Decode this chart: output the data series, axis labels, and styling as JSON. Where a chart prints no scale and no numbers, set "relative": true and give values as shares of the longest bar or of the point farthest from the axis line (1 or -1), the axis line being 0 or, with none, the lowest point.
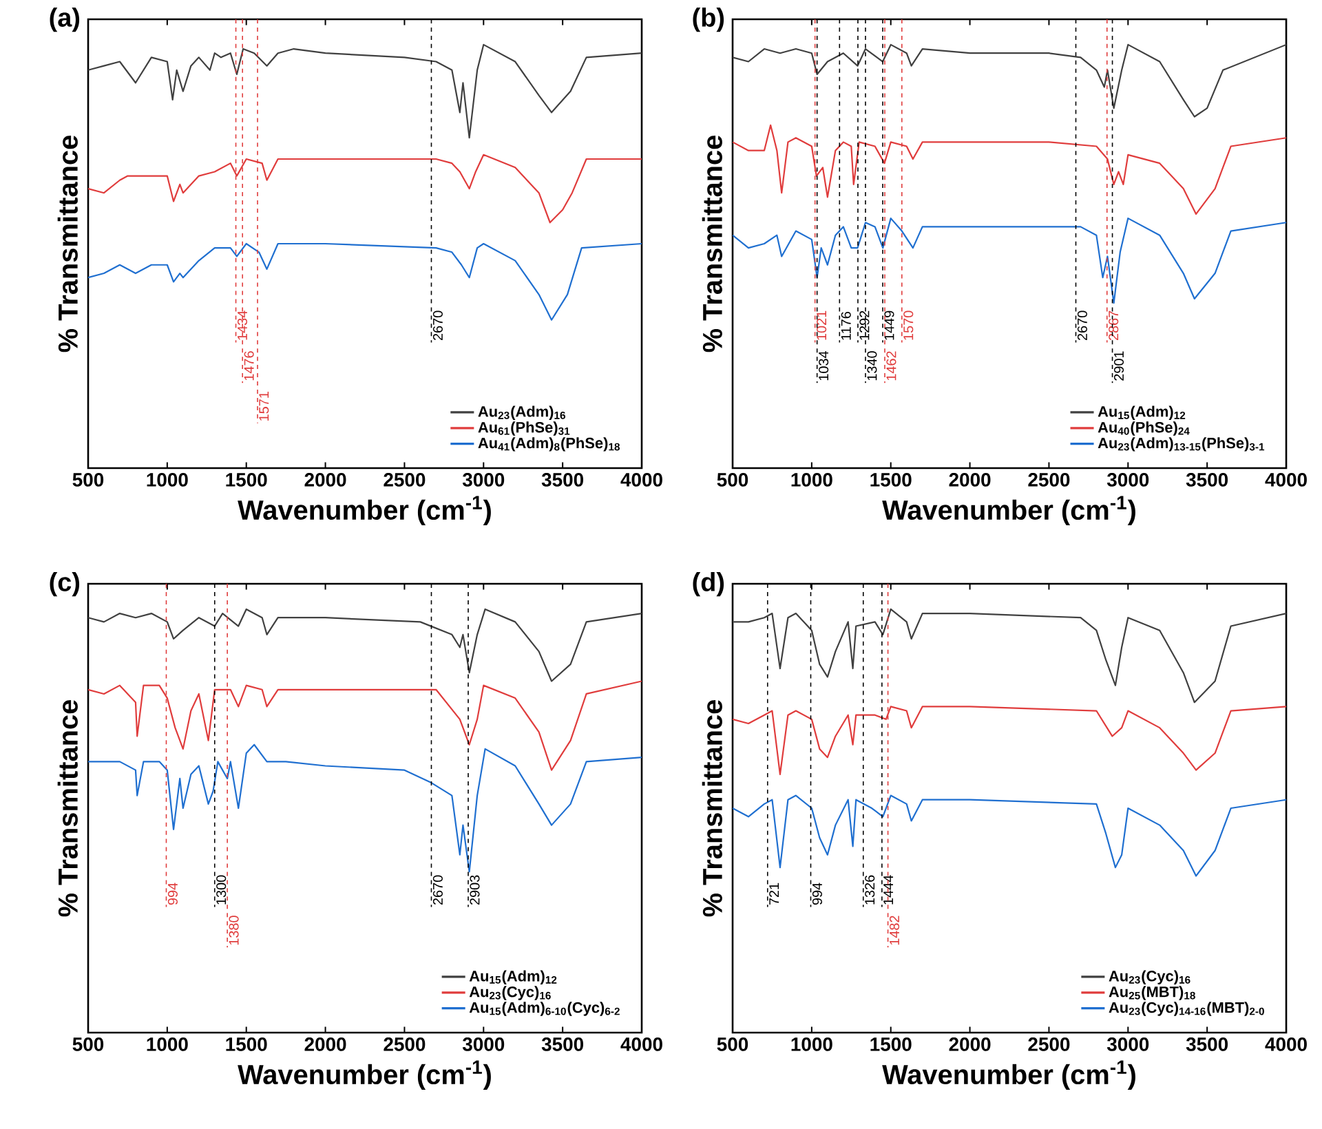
{
  "chart_data": [
    {
      "type": "line",
      "title": "(a)",
      "xlabel": "Wavenumber (cm$^{-1}$)",
      "ylabel": "% Transmittance",
      "relative": true,
      "xlim": [
        500,
        4000
      ],
      "xticks": [
        500,
        1000,
        1500,
        2000,
        2500,
        3000,
        3500,
        4000
      ],
      "legend": "bottom right",
      "series": [
        {
          "name": "Au$_{23}$(Adm)$_{16}$",
          "color": "#404040",
          "x": [
            500,
            600,
            700,
            800,
            900,
            1000,
            1034,
            1060,
            1100,
            1150,
            1200,
            1270,
            1300,
            1340,
            1400,
            1440,
            1480,
            1550,
            1630,
            1700,
            1800,
            2000,
            2500,
            2700,
            2800,
            2850,
            2870,
            2910,
            2960,
            3000,
            3200,
            3350,
            3430,
            3550,
            3650,
            4000
          ],
          "values": [
            0.94,
            0.95,
            0.96,
            0.91,
            0.97,
            0.96,
            0.87,
            0.94,
            0.89,
            0.95,
            0.97,
            0.94,
            0.98,
            0.97,
            0.98,
            0.93,
            0.99,
            0.98,
            0.95,
            0.98,
            0.99,
            0.98,
            0.97,
            0.96,
            0.94,
            0.84,
            0.91,
            0.78,
            0.94,
            1.0,
            0.96,
            0.88,
            0.84,
            0.89,
            0.97,
            0.98
          ]
        },
        {
          "name": "Au$_{61}$(PhSe)$_{31}$",
          "color": "#e03c3c",
          "x": [
            500,
            600,
            700,
            750,
            850,
            1000,
            1040,
            1080,
            1100,
            1200,
            1300,
            1400,
            1440,
            1500,
            1600,
            1630,
            1700,
            2000,
            2700,
            2800,
            2850,
            2880,
            2910,
            2950,
            3000,
            3200,
            3350,
            3420,
            3500,
            3560,
            3650,
            4000
          ],
          "values": [
            0.66,
            0.65,
            0.68,
            0.69,
            0.69,
            0.69,
            0.63,
            0.67,
            0.65,
            0.69,
            0.7,
            0.72,
            0.69,
            0.73,
            0.72,
            0.68,
            0.73,
            0.73,
            0.73,
            0.72,
            0.7,
            0.68,
            0.66,
            0.7,
            0.74,
            0.71,
            0.65,
            0.58,
            0.61,
            0.65,
            0.73,
            0.73
          ]
        },
        {
          "name": "Au$_{41}$(Adm)$_{8}$(PhSe)$_{18}$",
          "color": "#1f6fd0",
          "x": [
            500,
            600,
            700,
            800,
            900,
            1000,
            1040,
            1080,
            1100,
            1200,
            1300,
            1400,
            1440,
            1500,
            1580,
            1630,
            1700,
            2000,
            2700,
            2800,
            2860,
            2910,
            2960,
            3000,
            3200,
            3350,
            3430,
            3530,
            3620,
            4000
          ],
          "values": [
            0.45,
            0.46,
            0.48,
            0.46,
            0.48,
            0.48,
            0.44,
            0.46,
            0.45,
            0.49,
            0.52,
            0.52,
            0.5,
            0.53,
            0.51,
            0.47,
            0.53,
            0.53,
            0.52,
            0.51,
            0.48,
            0.45,
            0.52,
            0.53,
            0.49,
            0.41,
            0.35,
            0.41,
            0.52,
            0.53
          ]
        }
      ],
      "ref_lines": [
        {
          "axis": "x",
          "value": 1434,
          "label": "1434",
          "color": "#e03c3c",
          "line_style": "dashed"
        },
        {
          "axis": "x",
          "value": 1476,
          "label": "1476",
          "color": "#e03c3c",
          "line_style": "dashed"
        },
        {
          "axis": "x",
          "value": 1571,
          "label": "1571",
          "color": "#e03c3c",
          "line_style": "dashed"
        },
        {
          "axis": "x",
          "value": 2670,
          "label": "2670",
          "color": "#000000",
          "line_style": "dashed"
        }
      ]
    },
    {
      "type": "line",
      "title": "(b)",
      "xlabel": "Wavenumber (cm$^{-1}$)",
      "ylabel": "% Transmittance",
      "relative": true,
      "xlim": [
        500,
        4000
      ],
      "xticks": [
        500,
        1000,
        1500,
        2000,
        2500,
        3000,
        3500,
        4000
      ],
      "legend": "bottom right",
      "series": [
        {
          "name": "Au$_{15}$(Adm)$_{12}$",
          "color": "#404040",
          "x": [
            500,
            600,
            700,
            800,
            900,
            1000,
            1034,
            1100,
            1200,
            1290,
            1340,
            1449,
            1500,
            1600,
            1630,
            1700,
            2000,
            2500,
            2700,
            2800,
            2850,
            2870,
            2910,
            2960,
            3000,
            3200,
            3350,
            3420,
            3500,
            3600,
            4000
          ],
          "values": [
            0.97,
            0.96,
            0.99,
            0.98,
            0.99,
            0.98,
            0.93,
            0.96,
            0.98,
            0.95,
            0.99,
            0.96,
            1.0,
            0.98,
            0.95,
            0.99,
            0.98,
            0.98,
            0.97,
            0.94,
            0.9,
            0.94,
            0.85,
            0.94,
            1.0,
            0.96,
            0.87,
            0.83,
            0.85,
            0.94,
            1.0
          ]
        },
        {
          "name": "Au$_{40}$(PhSe)$_{24}$",
          "color": "#e03c3c",
          "x": [
            500,
            600,
            700,
            740,
            780,
            810,
            850,
            900,
            1000,
            1030,
            1070,
            1100,
            1150,
            1200,
            1250,
            1265,
            1300,
            1400,
            1460,
            1500,
            1600,
            1640,
            1700,
            2500,
            2800,
            2870,
            2910,
            2940,
            2970,
            3000,
            3200,
            3350,
            3430,
            3550,
            3650,
            4000
          ],
          "values": [
            0.77,
            0.75,
            0.75,
            0.81,
            0.75,
            0.65,
            0.77,
            0.78,
            0.76,
            0.69,
            0.71,
            0.64,
            0.75,
            0.77,
            0.76,
            0.67,
            0.77,
            0.76,
            0.72,
            0.77,
            0.76,
            0.73,
            0.77,
            0.77,
            0.76,
            0.73,
            0.67,
            0.7,
            0.67,
            0.74,
            0.72,
            0.66,
            0.6,
            0.66,
            0.76,
            0.78
          ]
        },
        {
          "name": "Au$_{23}$(Adm)$_{13-15}$(PhSe)$_{3-1}$",
          "color": "#1f6fd0",
          "x": [
            500,
            600,
            700,
            780,
            810,
            900,
            1000,
            1034,
            1060,
            1100,
            1150,
            1200,
            1250,
            1290,
            1340,
            1400,
            1450,
            1500,
            1570,
            1640,
            1700,
            2000,
            2700,
            2800,
            2840,
            2870,
            2910,
            2950,
            3000,
            3200,
            3350,
            3420,
            3550,
            3650,
            4000
          ],
          "values": [
            0.55,
            0.52,
            0.53,
            0.55,
            0.5,
            0.56,
            0.54,
            0.45,
            0.52,
            0.48,
            0.55,
            0.57,
            0.52,
            0.52,
            0.58,
            0.57,
            0.52,
            0.59,
            0.56,
            0.52,
            0.57,
            0.57,
            0.57,
            0.55,
            0.45,
            0.5,
            0.39,
            0.51,
            0.59,
            0.55,
            0.46,
            0.4,
            0.46,
            0.56,
            0.58
          ]
        }
      ],
      "ref_lines": [
        {
          "axis": "x",
          "value": 1021,
          "label": "1021",
          "color": "#e03c3c",
          "line_style": "dashed"
        },
        {
          "axis": "x",
          "value": 1034,
          "label": "1034",
          "color": "#000000",
          "line_style": "dashed"
        },
        {
          "axis": "x",
          "value": 1176,
          "label": "1176",
          "color": "#000000",
          "line_style": "dashed"
        },
        {
          "axis": "x",
          "value": 1292,
          "label": "1292",
          "color": "#000000",
          "line_style": "dashed"
        },
        {
          "axis": "x",
          "value": 1340,
          "label": "1340",
          "color": "#000000",
          "line_style": "dashed"
        },
        {
          "axis": "x",
          "value": 1449,
          "label": "1449",
          "color": "#000000",
          "line_style": "dashed"
        },
        {
          "axis": "x",
          "value": 1462,
          "label": "1462",
          "color": "#e03c3c",
          "line_style": "dashed"
        },
        {
          "axis": "x",
          "value": 1570,
          "label": "1570",
          "color": "#e03c3c",
          "line_style": "dashed"
        },
        {
          "axis": "x",
          "value": 2670,
          "label": "2670",
          "color": "#000000",
          "line_style": "dashed"
        },
        {
          "axis": "x",
          "value": 2867,
          "label": "2867",
          "color": "#e03c3c",
          "line_style": "dashed"
        },
        {
          "axis": "x",
          "value": 2901,
          "label": "2901",
          "color": "#000000",
          "line_style": "dashed"
        }
      ]
    },
    {
      "type": "line",
      "title": "(c)",
      "xlabel": "Wavenumber (cm$^{-1}$)",
      "ylabel": "% Transmittance",
      "relative": true,
      "xlim": [
        500,
        4000
      ],
      "xticks": [
        500,
        1000,
        1500,
        2000,
        2500,
        3000,
        3500,
        4000
      ],
      "legend": "bottom right",
      "series": [
        {
          "name": "Au$_{15}$(Adm)$_{12}$",
          "color": "#404040",
          "x": [
            500,
            600,
            700,
            800,
            900,
            1000,
            1040,
            1100,
            1200,
            1300,
            1350,
            1450,
            1500,
            1600,
            1630,
            1700,
            2000,
            2600,
            2800,
            2850,
            2870,
            2910,
            2960,
            3010,
            3200,
            3350,
            3430,
            3550,
            3650,
            4000
          ],
          "values": [
            0.98,
            0.97,
            0.99,
            0.98,
            0.99,
            0.97,
            0.93,
            0.95,
            0.98,
            0.96,
            0.99,
            0.96,
            1.0,
            0.98,
            0.94,
            0.98,
            0.98,
            0.97,
            0.94,
            0.91,
            0.94,
            0.85,
            0.94,
            1.0,
            0.97,
            0.9,
            0.83,
            0.87,
            0.97,
            0.99
          ]
        },
        {
          "name": "Au$_{23}$(Cyc)$_{16}$",
          "color": "#e03c3c",
          "x": [
            500,
            600,
            700,
            800,
            810,
            850,
            950,
            1000,
            1050,
            1100,
            1150,
            1200,
            1260,
            1300,
            1400,
            1450,
            1500,
            1600,
            1630,
            1700,
            2000,
            2700,
            2850,
            2910,
            2960,
            3000,
            3200,
            3350,
            3430,
            3550,
            3650,
            4000
          ],
          "values": [
            0.81,
            0.8,
            0.82,
            0.78,
            0.7,
            0.82,
            0.82,
            0.79,
            0.72,
            0.67,
            0.76,
            0.8,
            0.69,
            0.81,
            0.81,
            0.77,
            0.82,
            0.81,
            0.77,
            0.81,
            0.81,
            0.81,
            0.74,
            0.68,
            0.74,
            0.82,
            0.79,
            0.71,
            0.62,
            0.69,
            0.8,
            0.83
          ]
        },
        {
          "name": "Au$_{15}$(Adm)$_{6-10}$(Cyc)$_{6-2}$",
          "color": "#1f6fd0",
          "x": [
            500,
            600,
            700,
            800,
            810,
            850,
            950,
            1000,
            1040,
            1080,
            1100,
            1150,
            1200,
            1260,
            1290,
            1320,
            1380,
            1400,
            1450,
            1500,
            1550,
            1630,
            1750,
            2000,
            2500,
            2670,
            2800,
            2850,
            2870,
            2910,
            2960,
            3010,
            3200,
            3350,
            3430,
            3550,
            3650,
            4000
          ],
          "values": [
            0.64,
            0.64,
            0.64,
            0.62,
            0.56,
            0.64,
            0.64,
            0.62,
            0.48,
            0.6,
            0.53,
            0.61,
            0.63,
            0.54,
            0.57,
            0.64,
            0.6,
            0.64,
            0.53,
            0.66,
            0.68,
            0.64,
            0.64,
            0.63,
            0.62,
            0.59,
            0.56,
            0.42,
            0.49,
            0.38,
            0.56,
            0.67,
            0.63,
            0.54,
            0.49,
            0.54,
            0.64,
            0.65
          ]
        }
      ],
      "ref_lines": [
        {
          "axis": "x",
          "value": 994,
          "label": "994",
          "color": "#e03c3c",
          "line_style": "dashed"
        },
        {
          "axis": "x",
          "value": 1300,
          "label": "1300",
          "color": "#000000",
          "line_style": "dashed"
        },
        {
          "axis": "x",
          "value": 1380,
          "label": "1380",
          "color": "#e03c3c",
          "line_style": "dashed"
        },
        {
          "axis": "x",
          "value": 2670,
          "label": "2670",
          "color": "#000000",
          "line_style": "dashed"
        },
        {
          "axis": "x",
          "value": 2903,
          "label": "2903",
          "color": "#000000",
          "line_style": "dashed"
        }
      ]
    },
    {
      "type": "line",
      "title": "(d)",
      "xlabel": "Wavenumber (cm$^{-1}$)",
      "ylabel": "% Transmittance",
      "relative": true,
      "xlim": [
        500,
        4000
      ],
      "xticks": [
        500,
        1000,
        1500,
        2000,
        2500,
        3000,
        3500,
        4000
      ],
      "legend": "bottom right",
      "series": [
        {
          "name": "Au$_{23}$(Cyc)$_{16}$",
          "color": "#404040",
          "x": [
            500,
            600,
            700,
            750,
            800,
            850,
            900,
            1000,
            1050,
            1100,
            1150,
            1230,
            1260,
            1280,
            1400,
            1450,
            1500,
            1600,
            1630,
            1700,
            2000,
            2700,
            2800,
            2860,
            2920,
            2960,
            3000,
            3200,
            3350,
            3420,
            3550,
            3650,
            4000
          ],
          "values": [
            0.97,
            0.97,
            0.98,
            0.99,
            0.86,
            0.98,
            0.99,
            0.95,
            0.87,
            0.84,
            0.9,
            0.97,
            0.86,
            0.96,
            0.97,
            0.94,
            1.0,
            0.97,
            0.93,
            0.99,
            0.99,
            0.98,
            0.95,
            0.88,
            0.82,
            0.91,
            0.98,
            0.95,
            0.85,
            0.78,
            0.83,
            0.96,
            0.99
          ]
        },
        {
          "name": "Au$_{25}$(MBT)$_{18}$",
          "color": "#e03c3c",
          "x": [
            500,
            600,
            700,
            750,
            800,
            850,
            900,
            1000,
            1050,
            1100,
            1150,
            1230,
            1260,
            1280,
            1400,
            1470,
            1500,
            1600,
            1630,
            1700,
            2000,
            2800,
            2900,
            2960,
            3000,
            3200,
            3350,
            3430,
            3550,
            3650,
            4000
          ],
          "values": [
            0.74,
            0.73,
            0.75,
            0.76,
            0.61,
            0.75,
            0.76,
            0.74,
            0.67,
            0.65,
            0.7,
            0.75,
            0.68,
            0.75,
            0.75,
            0.74,
            0.77,
            0.76,
            0.72,
            0.77,
            0.77,
            0.76,
            0.7,
            0.72,
            0.76,
            0.72,
            0.66,
            0.62,
            0.66,
            0.76,
            0.77
          ]
        },
        {
          "name": "Au$_{23}$(Cyc)$_{14-16}$(MBT)$_{2-0}$",
          "color": "#1f6fd0",
          "x": [
            500,
            600,
            700,
            750,
            800,
            850,
            900,
            1000,
            1050,
            1100,
            1150,
            1230,
            1260,
            1280,
            1380,
            1450,
            1500,
            1600,
            1630,
            1700,
            2000,
            2800,
            2860,
            2920,
            2960,
            3000,
            3200,
            3350,
            3430,
            3550,
            3650,
            4000
          ],
          "values": [
            0.53,
            0.51,
            0.54,
            0.55,
            0.39,
            0.55,
            0.56,
            0.53,
            0.46,
            0.42,
            0.49,
            0.55,
            0.44,
            0.55,
            0.53,
            0.51,
            0.56,
            0.54,
            0.5,
            0.55,
            0.55,
            0.54,
            0.47,
            0.39,
            0.42,
            0.53,
            0.49,
            0.43,
            0.37,
            0.43,
            0.53,
            0.55
          ]
        }
      ],
      "ref_lines": [
        {
          "axis": "x",
          "value": 721,
          "label": "721",
          "color": "#000000",
          "line_style": "dashed"
        },
        {
          "axis": "x",
          "value": 994,
          "label": "994",
          "color": "#000000",
          "line_style": "dashed"
        },
        {
          "axis": "x",
          "value": 1326,
          "label": "1326",
          "color": "#000000",
          "line_style": "dashed"
        },
        {
          "axis": "x",
          "value": 1444,
          "label": "1444",
          "color": "#000000",
          "line_style": "dashed"
        },
        {
          "axis": "x",
          "value": 1482,
          "label": "1482",
          "color": "#e03c3c",
          "line_style": "dashed"
        }
      ]
    }
  ]
}
